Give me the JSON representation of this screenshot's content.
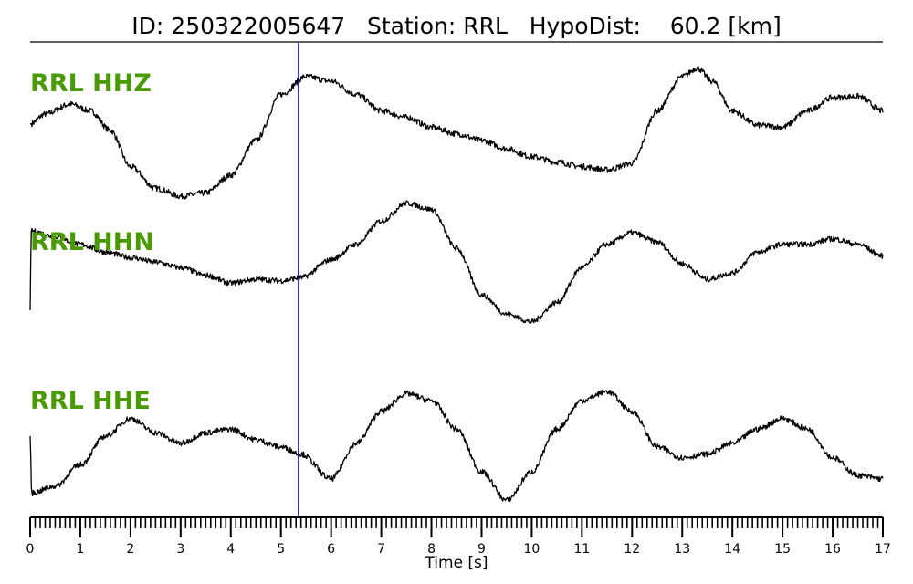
{
  "chart_data": {
    "type": "line",
    "title": "ID: 250322005647   Station: RRL   HypoDist:    60.2 [km]",
    "xlabel": "Time [s]",
    "xlim": [
      0,
      17
    ],
    "x_tick_labels": [
      "0",
      "1",
      "2",
      "3",
      "4",
      "5",
      "6",
      "7",
      "8",
      "9",
      "10",
      "11",
      "12",
      "13",
      "14",
      "15",
      "16",
      "17"
    ],
    "pick_time": 5.35,
    "line_color": "#000000",
    "label_color": "#4a9a06",
    "pick_color": "#1010cc",
    "series": [
      {
        "name": "RRL HHZ",
        "noise": 0.045,
        "points": [
          [
            0,
            0.1
          ],
          [
            0.3,
            0.25
          ],
          [
            0.8,
            0.4
          ],
          [
            1.2,
            0.3
          ],
          [
            1.6,
            0.0
          ],
          [
            2,
            -0.55
          ],
          [
            2.5,
            -0.88
          ],
          [
            3,
            -1.0
          ],
          [
            3.5,
            -0.95
          ],
          [
            4,
            -0.68
          ],
          [
            4.5,
            -0.15
          ],
          [
            5,
            0.55
          ],
          [
            5.5,
            0.82
          ],
          [
            6,
            0.75
          ],
          [
            6.5,
            0.55
          ],
          [
            7,
            0.3
          ],
          [
            7.5,
            0.2
          ],
          [
            8,
            0.05
          ],
          [
            8.5,
            -0.05
          ],
          [
            9,
            -0.15
          ],
          [
            9.5,
            -0.28
          ],
          [
            10,
            -0.4
          ],
          [
            10.5,
            -0.48
          ],
          [
            11,
            -0.55
          ],
          [
            11.5,
            -0.6
          ],
          [
            12,
            -0.5
          ],
          [
            12.5,
            0.3
          ],
          [
            13,
            0.82
          ],
          [
            13.3,
            0.95
          ],
          [
            13.6,
            0.75
          ],
          [
            14,
            0.3
          ],
          [
            14.5,
            0.08
          ],
          [
            15,
            0.05
          ],
          [
            15.5,
            0.3
          ],
          [
            16,
            0.5
          ],
          [
            16.5,
            0.52
          ],
          [
            17,
            0.3
          ]
        ]
      },
      {
        "name": "RRL HHN",
        "noise": 0.035,
        "points": [
          [
            0,
            -0.4
          ],
          [
            0.02,
            0.62
          ],
          [
            0.5,
            0.55
          ],
          [
            1,
            0.45
          ],
          [
            1.5,
            0.35
          ],
          [
            2,
            0.28
          ],
          [
            2.5,
            0.22
          ],
          [
            3,
            0.15
          ],
          [
            3.5,
            0.05
          ],
          [
            4,
            -0.05
          ],
          [
            4.5,
            0.0
          ],
          [
            5,
            -0.02
          ],
          [
            5.4,
            0.02
          ],
          [
            6,
            0.25
          ],
          [
            6.5,
            0.45
          ],
          [
            7,
            0.75
          ],
          [
            7.5,
            0.98
          ],
          [
            8,
            0.9
          ],
          [
            8.5,
            0.4
          ],
          [
            9,
            -0.2
          ],
          [
            9.5,
            -0.45
          ],
          [
            10,
            -0.55
          ],
          [
            10.5,
            -0.3
          ],
          [
            11,
            0.15
          ],
          [
            11.5,
            0.45
          ],
          [
            12,
            0.6
          ],
          [
            12.5,
            0.48
          ],
          [
            13,
            0.2
          ],
          [
            13.5,
            0.0
          ],
          [
            14,
            0.08
          ],
          [
            14.5,
            0.35
          ],
          [
            15,
            0.45
          ],
          [
            15.5,
            0.45
          ],
          [
            16,
            0.52
          ],
          [
            16.5,
            0.45
          ],
          [
            17,
            0.3
          ]
        ]
      },
      {
        "name": "RRL HHE",
        "noise": 0.04,
        "points": [
          [
            0,
            0.05
          ],
          [
            0.03,
            -0.75
          ],
          [
            0.5,
            -0.65
          ],
          [
            1,
            -0.35
          ],
          [
            1.5,
            0.05
          ],
          [
            2,
            0.3
          ],
          [
            2.5,
            0.1
          ],
          [
            3,
            -0.05
          ],
          [
            3.5,
            0.1
          ],
          [
            4,
            0.15
          ],
          [
            4.5,
            0.0
          ],
          [
            5,
            -0.1
          ],
          [
            5.4,
            -0.2
          ],
          [
            6,
            -0.55
          ],
          [
            6.5,
            -0.05
          ],
          [
            7,
            0.4
          ],
          [
            7.5,
            0.65
          ],
          [
            8,
            0.55
          ],
          [
            8.5,
            0.15
          ],
          [
            9,
            -0.45
          ],
          [
            9.5,
            -0.85
          ],
          [
            10,
            -0.45
          ],
          [
            10.5,
            0.15
          ],
          [
            11,
            0.55
          ],
          [
            11.5,
            0.68
          ],
          [
            12,
            0.4
          ],
          [
            12.5,
            -0.1
          ],
          [
            13,
            -0.25
          ],
          [
            13.5,
            -0.2
          ],
          [
            14,
            -0.05
          ],
          [
            14.5,
            0.15
          ],
          [
            15,
            0.3
          ],
          [
            15.5,
            0.15
          ],
          [
            16,
            -0.25
          ],
          [
            16.5,
            -0.5
          ],
          [
            17,
            -0.55
          ]
        ]
      }
    ]
  }
}
